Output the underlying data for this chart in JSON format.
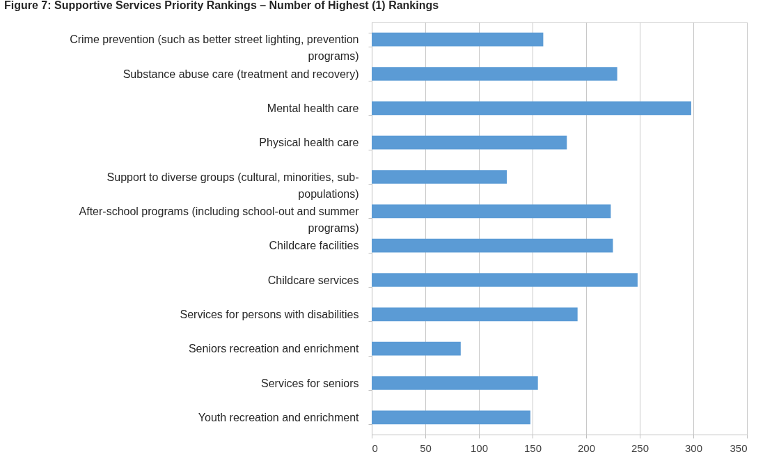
{
  "chart_data": {
    "type": "bar",
    "orientation": "horizontal",
    "title": "Figure 7: Supportive Services Priority Rankings – Number of Highest (1) Rankings",
    "categories": [
      "Crime prevention (such as better street lighting, prevention programs)",
      "Substance abuse care (treatment and recovery)",
      "Mental health care",
      "Physical health care",
      "Support to diverse groups (cultural, minorities, sub-populations)",
      "After-school programs (including school-out and summer programs)",
      "Childcare facilities",
      "Childcare services",
      "Services for persons with disabilities",
      "Seniors recreation and enrichment",
      "Services for seniors",
      "Youth recreation and enrichment"
    ],
    "values": [
      160,
      229,
      298,
      182,
      126,
      223,
      225,
      248,
      192,
      83,
      155,
      148
    ],
    "color": "#5b9bd5",
    "xlim": [
      0,
      350
    ],
    "xticks": [
      0,
      50,
      100,
      150,
      200,
      250,
      300,
      350
    ],
    "grid": "x"
  }
}
